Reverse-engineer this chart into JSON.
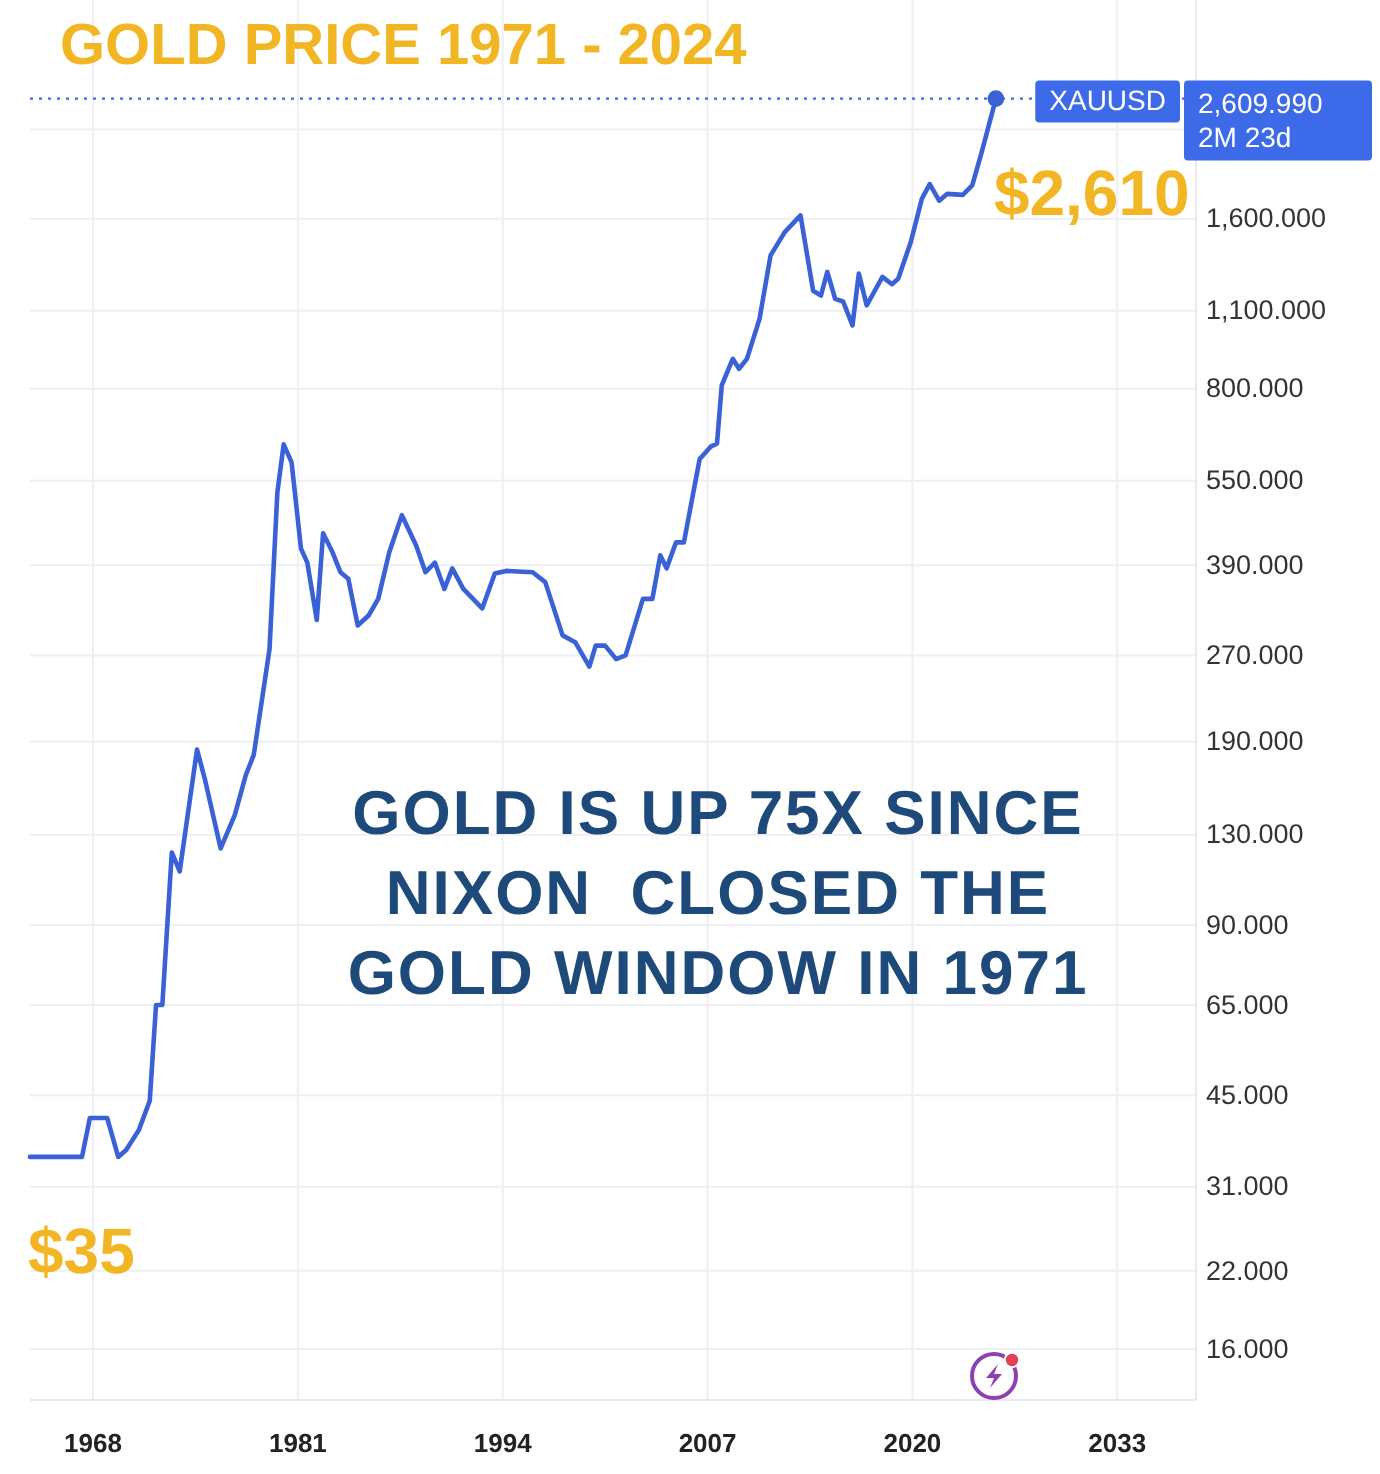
{
  "chart_data": {
    "type": "line",
    "title": "GOLD PRICE 1971 - 2024",
    "x": [
      1964,
      1967.3,
      1967.8,
      1968.9,
      1969.6,
      1970.1,
      1970.9,
      1971.6,
      1972.0,
      1972.4,
      1973.0,
      1973.5,
      1974.6,
      1975.1,
      1976.1,
      1977.0,
      1977.7,
      1978.2,
      1979.2,
      1979.7,
      1980.1,
      1980.6,
      1981.2,
      1981.6,
      1982.2,
      1982.6,
      1983.2,
      1983.7,
      1984.2,
      1984.8,
      1985.5,
      1986.1,
      1986.8,
      1987.6,
      1988.5,
      1989.1,
      1989.7,
      1990.3,
      1990.8,
      1991.5,
      1992.7,
      1993.5,
      1994.2,
      1995.9,
      1996.7,
      1997.8,
      1998.6,
      1999.5,
      1999.9,
      2000.5,
      2001.2,
      2001.8,
      2002.9,
      2003.5,
      2004.0,
      2004.4,
      2005.0,
      2005.5,
      2006.5,
      2007.2,
      2007.6,
      2007.9,
      2008.6,
      2009.0,
      2009.5,
      2010.3,
      2011.0,
      2011.9,
      2012.9,
      2013.7,
      2014.2,
      2014.6,
      2015.1,
      2015.6,
      2016.2,
      2016.6,
      2017.1,
      2018.1,
      2018.7,
      2019.1,
      2019.9,
      2020.6,
      2021.1,
      2021.7,
      2022.2,
      2023.2,
      2023.8,
      2024.4,
      2025.3
    ],
    "series": [
      {
        "color": "#3a62d6",
        "values": [
          35,
          35,
          41,
          41,
          35,
          36,
          39,
          44,
          65,
          65,
          121,
          112,
          184,
          163,
          123,
          141,
          166,
          180,
          277,
          525,
          638,
          593,
          417,
          394,
          312,
          444,
          411,
          379,
          369,
          305,
          318,
          340,
          411,
          478,
          423,
          379,
          394,
          354,
          385,
          354,
          327,
          377,
          381,
          379,
          364,
          293,
          285,
          258,
          281,
          281,
          266,
          270,
          340,
          340,
          406,
          385,
          428,
          428,
          601,
          632,
          640,
          811,
          904,
          868,
          904,
          1064,
          1378,
          1515,
          1622,
          1193,
          1170,
          1288,
          1154,
          1142,
          1036,
          1280,
          1124,
          1262,
          1225,
          1253,
          1455,
          1735,
          1842,
          1722,
          1770,
          1763,
          1832,
          2099,
          2609.99
        ]
      },
      {
        "type": "scatter",
        "color": "#3a62d6",
        "marker": "circle",
        "x": [
          2025.3
        ],
        "values": [
          2609.99
        ]
      }
    ],
    "xlim": [
      1964,
      2038
    ],
    "xticks": [
      1968,
      1981,
      1994,
      2007,
      2020,
      2033
    ],
    "ylim": [
      13,
      3900
    ],
    "yticks": [
      {
        "value": 16,
        "label": "16.000"
      },
      {
        "value": 22,
        "label": "22.000"
      },
      {
        "value": 31,
        "label": "31.000"
      },
      {
        "value": 45,
        "label": "45.000"
      },
      {
        "value": 65,
        "label": "65.000"
      },
      {
        "value": 90,
        "label": "90.000"
      },
      {
        "value": 130,
        "label": "130.000"
      },
      {
        "value": 190,
        "label": "190.000"
      },
      {
        "value": 270,
        "label": "270.000"
      },
      {
        "value": 390,
        "label": "390.000"
      },
      {
        "value": 550,
        "label": "550.000"
      },
      {
        "value": 800,
        "label": "800.000"
      },
      {
        "value": 1100,
        "label": "1,100.000"
      },
      {
        "value": 1600,
        "label": "1,600.000"
      },
      {
        "value": 2300,
        "label": null
      }
    ],
    "log": true,
    "grid": true,
    "ref_lines": [
      {
        "axis": "y",
        "value": 2609.99,
        "label": "XAUUSD",
        "color": "#3d6ae8",
        "line_style": "dotted"
      }
    ],
    "annotations": [
      "GOLD IS UP 75X SINCE\nNIXON  CLOSED THE\nGOLD WINDOW IN 1971",
      {
        "text": "$35",
        "x": 1964,
        "y": 35
      },
      {
        "text": "$2,610",
        "x": 2025.3,
        "y": 2609.99
      },
      "2,609.990",
      "2M 23d"
    ]
  }
}
